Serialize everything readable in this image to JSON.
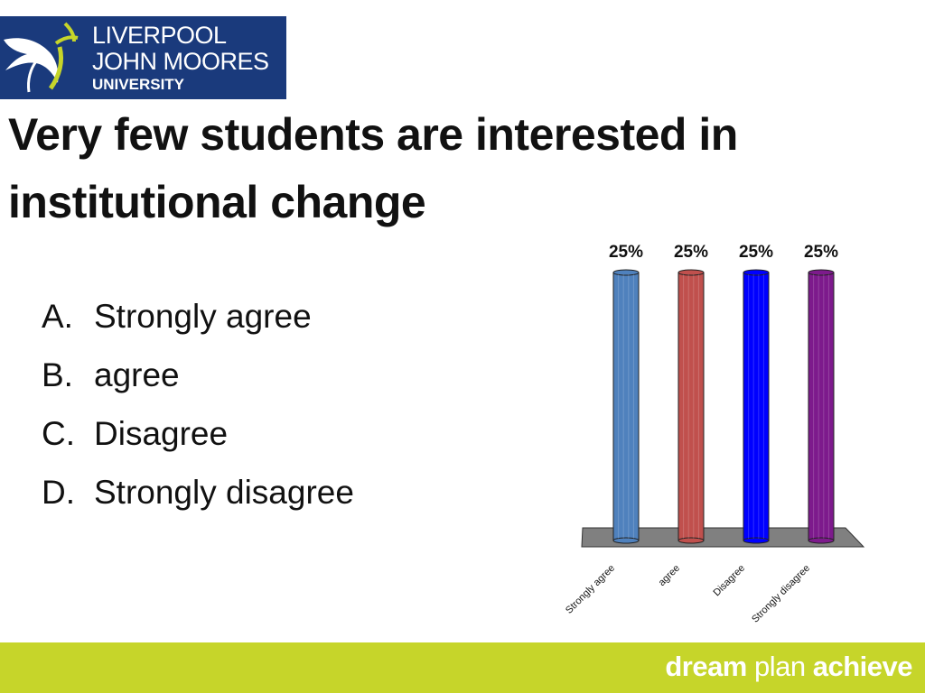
{
  "logo": {
    "line1": "LIVERPOOL",
    "line2": "JOHN MOORES",
    "line3": "UNIVERSITY"
  },
  "title": "Very few students are interested in institutional change",
  "options": [
    {
      "letter": "A.",
      "text": "Strongly agree"
    },
    {
      "letter": "B.",
      "text": "agree"
    },
    {
      "letter": "C.",
      "text": "Disagree"
    },
    {
      "letter": "D.",
      "text": "Strongly disagree"
    }
  ],
  "chart_data": {
    "type": "bar",
    "categories": [
      "Strongly agree",
      "agree",
      "Disagree",
      "Strongly disagree"
    ],
    "values": [
      25,
      25,
      25,
      25
    ],
    "data_labels": [
      "25%",
      "25%",
      "25%",
      "25%"
    ],
    "ylim": [
      0,
      25
    ],
    "grid": false,
    "colors": [
      "#4f81bd",
      "#c0504d",
      "#0000ff",
      "#7d1a8c"
    ]
  },
  "footer": {
    "word1": "dream",
    "word2": "plan",
    "word3": "achieve"
  }
}
